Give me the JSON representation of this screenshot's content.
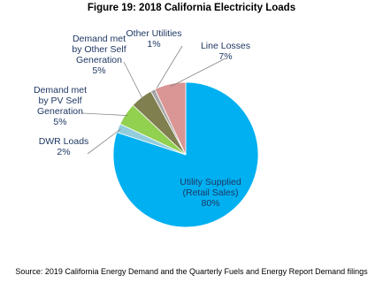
{
  "chart_data": {
    "type": "pie",
    "title": "Figure 19: 2018 California Electricity Loads",
    "source": "Source: 2019 California Energy Demand and the Quarterly Fuels and Energy Report Demand filings",
    "categories": [
      "Utility Supplied (Retail Sales)",
      "DWR Loads",
      "Demand met by PV Self Generation",
      "Demand met by Other Self Generation",
      "Other Utilities",
      "Line Losses"
    ],
    "values": [
      80,
      2,
      5,
      5,
      1,
      7
    ],
    "value_labels": [
      "80%",
      "2%",
      "5%",
      "5%",
      "1%",
      "7%"
    ],
    "colors": [
      "#00b0f0",
      "#92cddc",
      "#92d050",
      "#7f7f4f",
      "#a6a6a6",
      "#d99694"
    ]
  }
}
